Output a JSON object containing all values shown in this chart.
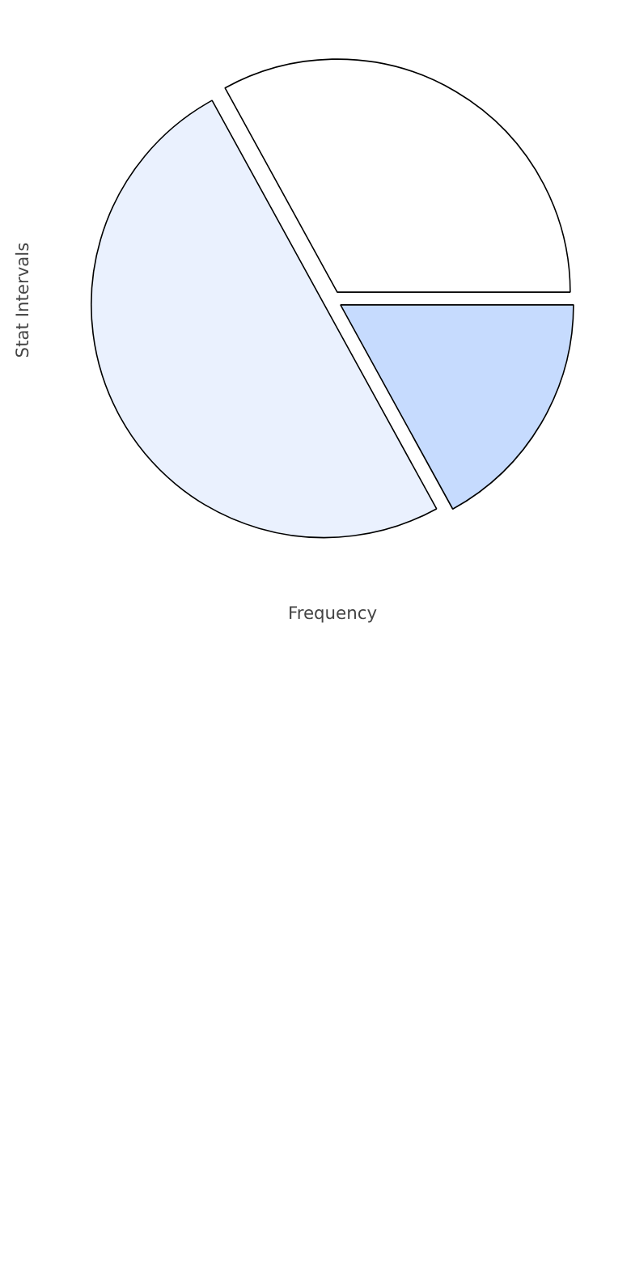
{
  "chart_data": {
    "type": "pie",
    "xlabel": "Frequency",
    "ylabel": "Stat Intervals",
    "categories": [
      null,
      null,
      null
    ],
    "values": [
      33,
      50,
      17
    ],
    "colors": [
      "#ffffff",
      "#eaf1fe",
      "#c6dbfe"
    ]
  }
}
